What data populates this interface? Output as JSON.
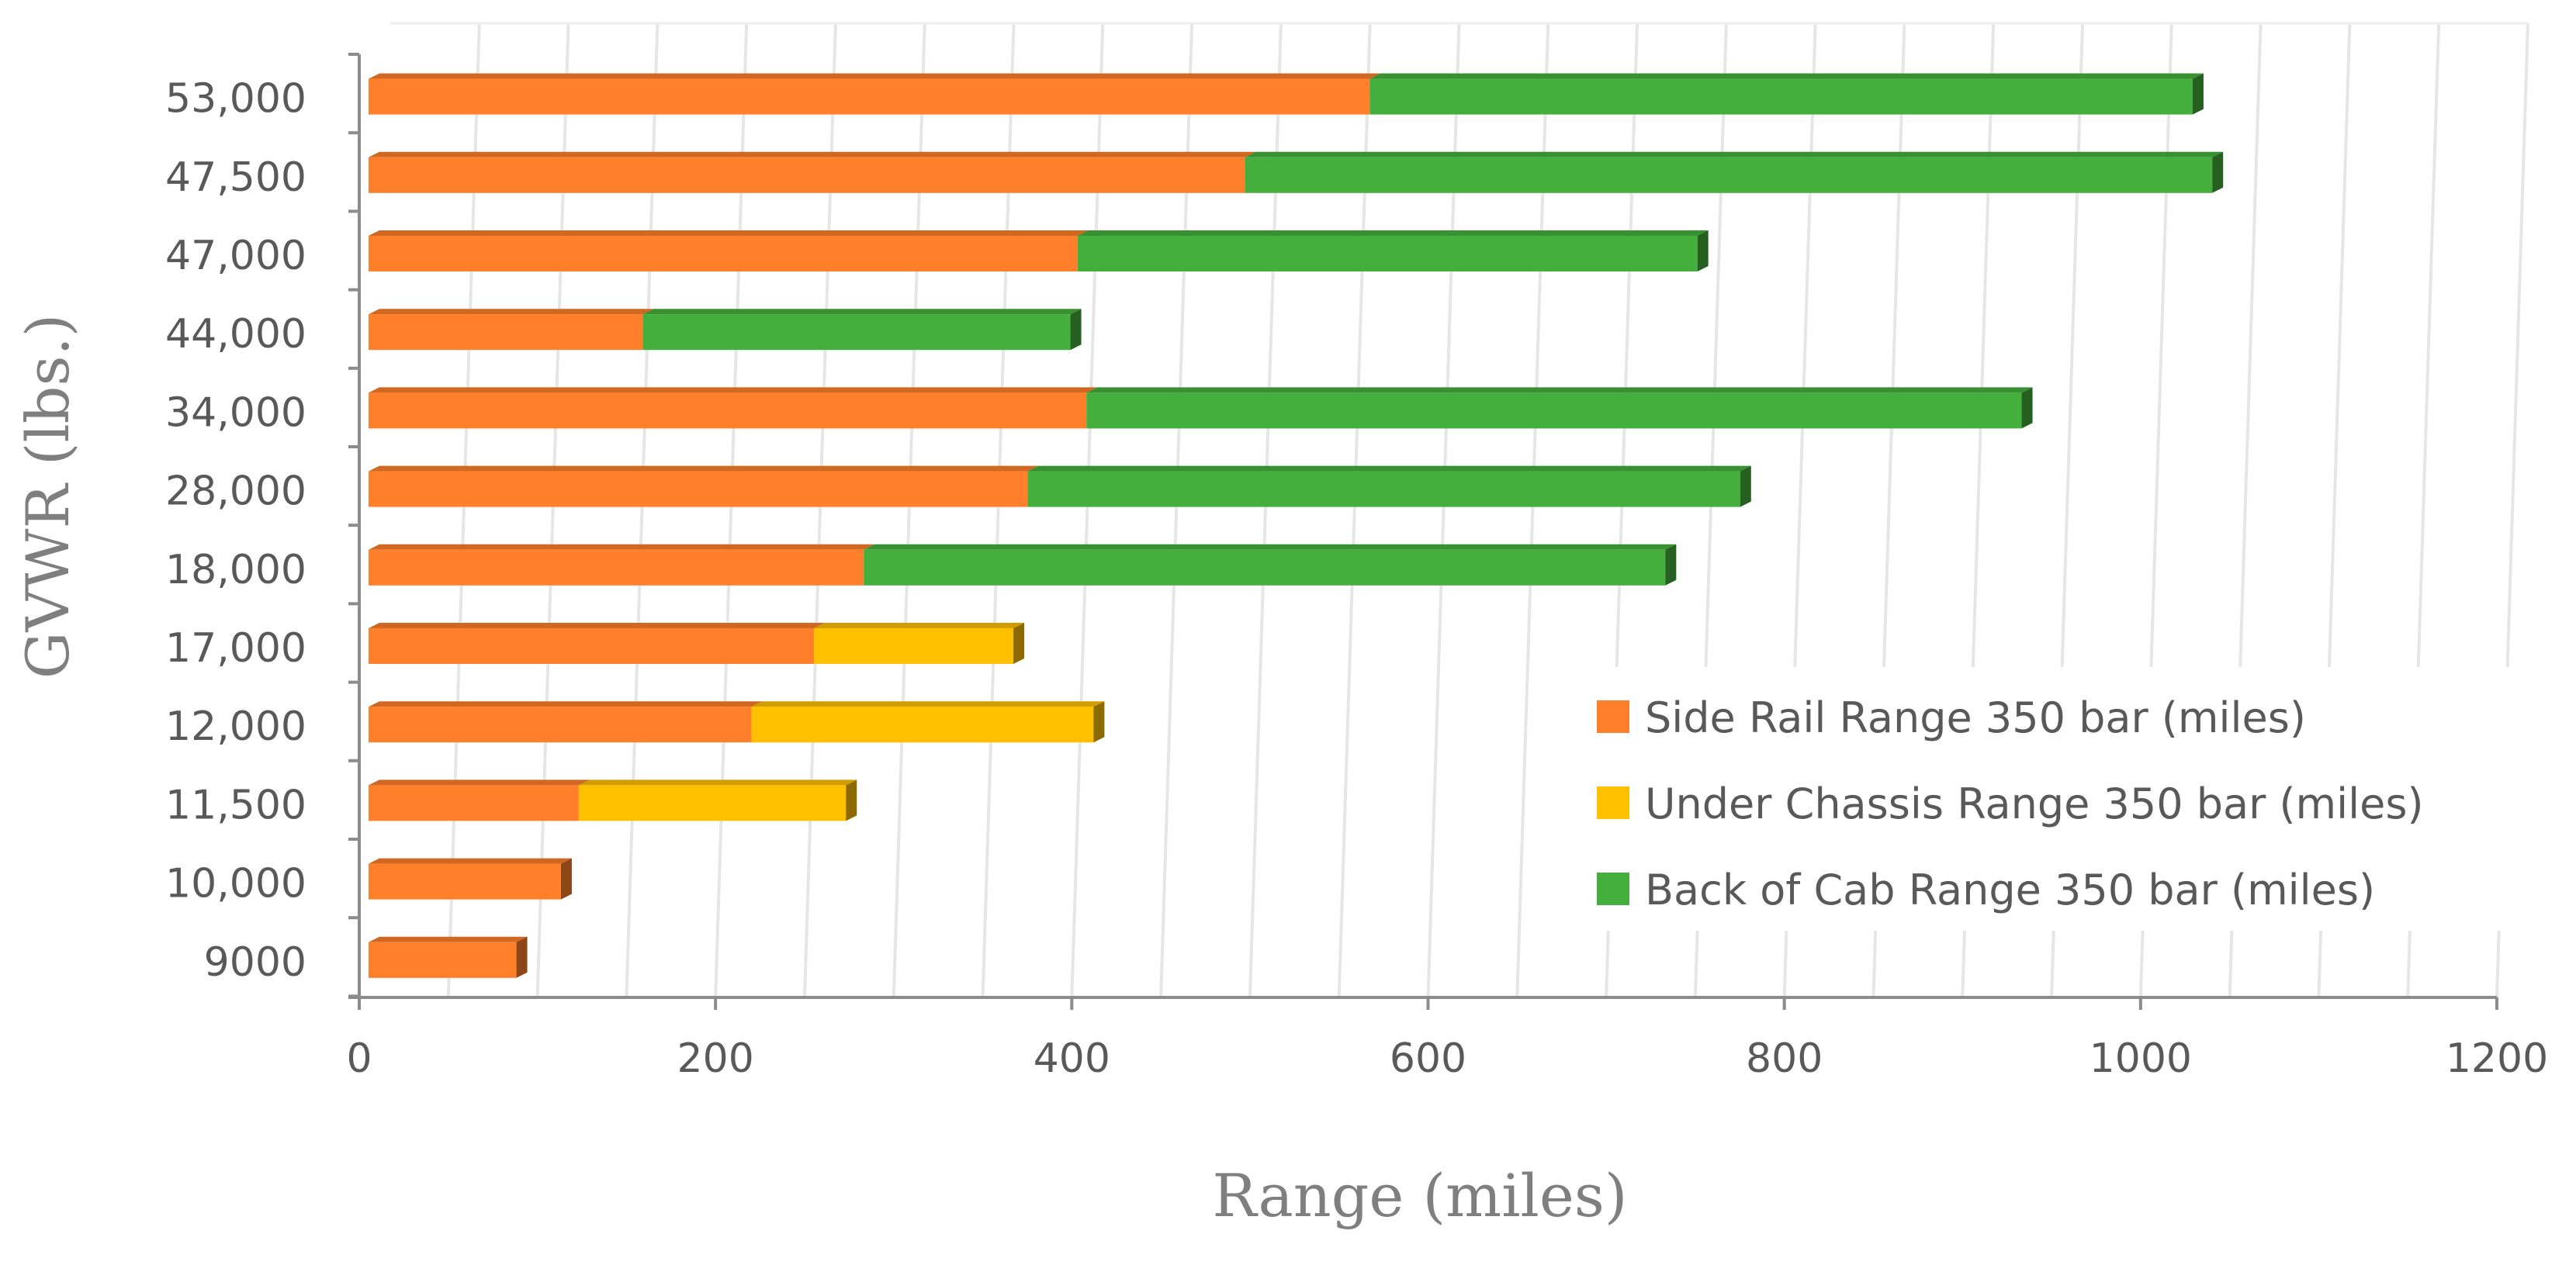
{
  "chart_data": {
    "type": "bar",
    "orientation": "horizontal",
    "stacked": true,
    "title": "",
    "xlabel": "Range (miles)",
    "ylabel": "GVWR (lbs.)",
    "xlim": [
      0,
      1200
    ],
    "x_ticks": [
      "0",
      "200",
      "400",
      "600",
      "800",
      "1000",
      "1200"
    ],
    "grid": "vertical",
    "legend_position": "bottom-right",
    "categories": [
      "9000",
      "10,000",
      "11,500",
      "12,000",
      "17,000",
      "18,000",
      "28,000",
      "34,000",
      "44,000",
      "47,000",
      "47,500",
      "53,000"
    ],
    "series": [
      {
        "name": "Side Rail Range 350 bar (miles)",
        "color": "#FF7F2A",
        "values": [
          83,
          108,
          118,
          215,
          250,
          278,
          370,
          403,
          154,
          398,
          492,
          562
        ]
      },
      {
        "name": "Under Chassis Range 350 bar (miles)",
        "color": "#FFC000",
        "values": [
          0,
          0,
          150,
          192,
          112,
          0,
          0,
          0,
          0,
          0,
          0,
          0
        ]
      },
      {
        "name": "Back of Cab Range 350 bar (miles)",
        "color": "#44AF3C",
        "values": [
          0,
          0,
          0,
          0,
          0,
          450,
          400,
          525,
          240,
          348,
          543,
          462
        ]
      }
    ]
  }
}
